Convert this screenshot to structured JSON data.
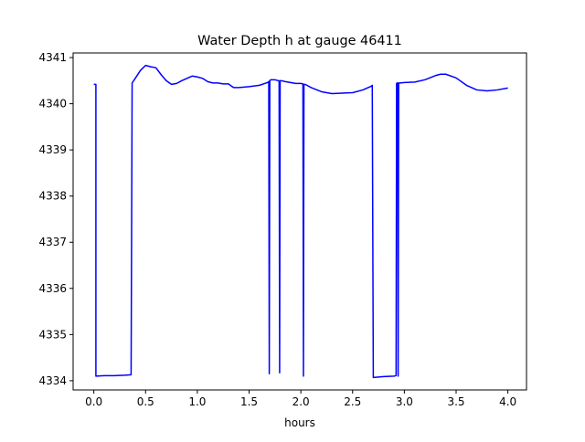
{
  "chart_data": {
    "type": "line",
    "title": "Water Depth h at gauge 46411",
    "xlabel": "hours",
    "ylabel": "",
    "xlim": [
      -0.2,
      4.18
    ],
    "ylim": [
      4333.8,
      4341.1
    ],
    "xticks": [
      0.0,
      0.5,
      1.0,
      1.5,
      2.0,
      2.5,
      3.0,
      3.5,
      4.0
    ],
    "xtick_labels": [
      "0.0",
      "0.5",
      "1.0",
      "1.5",
      "2.0",
      "2.5",
      "3.0",
      "3.5",
      "4.0"
    ],
    "yticks": [
      4334,
      4335,
      4336,
      4337,
      4338,
      4339,
      4340,
      4341
    ],
    "ytick_labels": [
      "4334",
      "4335",
      "4336",
      "4337",
      "4338",
      "4339",
      "4340",
      "4341"
    ],
    "grid": false,
    "legend": "none",
    "series": [
      {
        "color": "#0000ff",
        "x": [
          0.0,
          0.02,
          0.02,
          0.1,
          0.2,
          0.3,
          0.36,
          0.37,
          0.4,
          0.45,
          0.5,
          0.55,
          0.6,
          0.65,
          0.7,
          0.75,
          0.8,
          0.85,
          0.9,
          0.95,
          1.0,
          1.05,
          1.1,
          1.15,
          1.2,
          1.25,
          1.3,
          1.35,
          1.4,
          1.5,
          1.6,
          1.68,
          1.69,
          1.695,
          1.7,
          1.71,
          1.75,
          1.78,
          1.79,
          1.795,
          1.8,
          1.81,
          1.85,
          1.9,
          1.95,
          2.0,
          2.02,
          2.025,
          2.03,
          2.035,
          2.04,
          2.05,
          2.1,
          2.2,
          2.3,
          2.4,
          2.5,
          2.6,
          2.68,
          2.69,
          2.7,
          2.8,
          2.9,
          2.92,
          2.925,
          2.93,
          2.935,
          2.94,
          2.945,
          2.95,
          2.96,
          3.0,
          3.1,
          3.2,
          3.3,
          3.35,
          3.4,
          3.5,
          3.6,
          3.7,
          3.8,
          3.9,
          4.0
        ],
        "y": [
          4340.42,
          4340.42,
          4334.1,
          4334.11,
          4334.11,
          4334.12,
          4334.13,
          4340.45,
          4340.55,
          4340.72,
          4340.83,
          4340.8,
          4340.78,
          4340.63,
          4340.5,
          4340.42,
          4340.44,
          4340.5,
          4340.55,
          4340.6,
          4340.58,
          4340.55,
          4340.48,
          4340.45,
          4340.45,
          4340.43,
          4340.43,
          4340.35,
          4340.35,
          4340.37,
          4340.4,
          4340.46,
          4340.48,
          4334.15,
          4340.5,
          4340.52,
          4340.52,
          4340.5,
          4340.5,
          4334.17,
          4340.5,
          4340.5,
          4340.48,
          4340.46,
          4340.44,
          4340.44,
          4340.43,
          4334.1,
          4340.42,
          4340.42,
          4340.42,
          4340.41,
          4340.35,
          4340.26,
          4340.22,
          4340.23,
          4340.24,
          4340.3,
          4340.38,
          4340.4,
          4334.07,
          4334.09,
          4334.1,
          4334.11,
          4340.44,
          4340.45,
          4340.45,
          4334.1,
          4340.45,
          4340.45,
          4340.45,
          4340.46,
          4340.47,
          4340.52,
          4340.61,
          4340.64,
          4340.64,
          4340.56,
          4340.4,
          4340.3,
          4340.28,
          4340.3,
          4340.34
        ]
      }
    ]
  }
}
